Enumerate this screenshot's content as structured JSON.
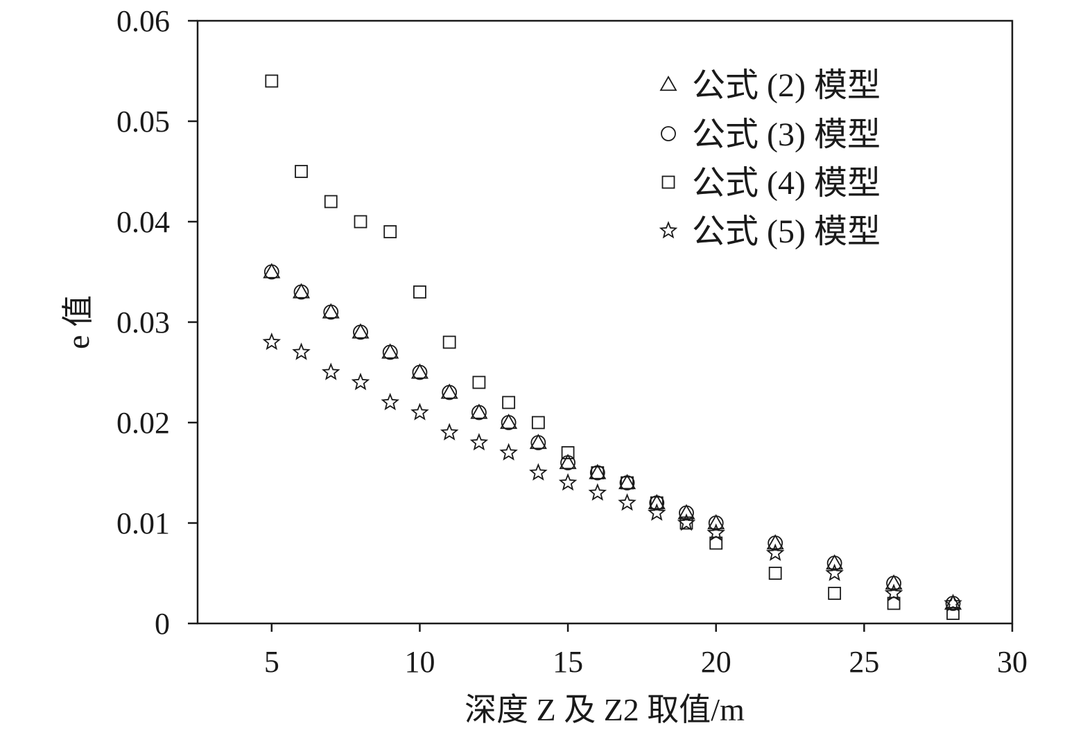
{
  "chart_data": {
    "type": "scatter",
    "title": "",
    "xlabel": "深度 Z 及 Z2 取值/m",
    "ylabel": "e 值",
    "xlim": [
      2.5,
      30
    ],
    "ylim": [
      0,
      0.06
    ],
    "x_ticks": [
      5,
      10,
      15,
      20,
      25,
      30
    ],
    "y_ticks": [
      0,
      0.01,
      0.02,
      0.03,
      0.04,
      0.05,
      0.06
    ],
    "x_tick_labels": [
      "5",
      "10",
      "15",
      "20",
      "25",
      "30"
    ],
    "y_tick_labels": [
      "0",
      "0.01",
      "0.02",
      "0.03",
      "0.04",
      "0.05",
      "0.06"
    ],
    "grid": false,
    "legend_position": "top-right",
    "series": [
      {
        "name": "公式 (2) 模型",
        "marker": "triangle",
        "x": [
          5,
          6,
          7,
          8,
          9,
          10,
          11,
          12,
          13,
          14,
          15,
          16,
          17,
          18,
          19,
          20,
          22,
          24,
          26,
          28
        ],
        "y": [
          0.035,
          0.033,
          0.031,
          0.029,
          0.027,
          0.025,
          0.023,
          0.021,
          0.02,
          0.018,
          0.016,
          0.015,
          0.014,
          0.012,
          0.011,
          0.01,
          0.008,
          0.006,
          0.004,
          0.002
        ]
      },
      {
        "name": "公式 (3) 模型",
        "marker": "circle",
        "x": [
          5,
          6,
          7,
          8,
          9,
          10,
          11,
          12,
          13,
          14,
          15,
          16,
          17,
          18,
          19,
          20,
          22,
          24,
          26,
          28
        ],
        "y": [
          0.035,
          0.033,
          0.031,
          0.029,
          0.027,
          0.025,
          0.023,
          0.021,
          0.02,
          0.018,
          0.016,
          0.015,
          0.014,
          0.012,
          0.011,
          0.01,
          0.008,
          0.006,
          0.004,
          0.002
        ]
      },
      {
        "name": "公式 (4) 模型",
        "marker": "square",
        "x": [
          5,
          6,
          7,
          8,
          9,
          10,
          11,
          12,
          13,
          14,
          15,
          16,
          17,
          18,
          19,
          20,
          22,
          24,
          26,
          28
        ],
        "y": [
          0.054,
          0.045,
          0.042,
          0.04,
          0.039,
          0.033,
          0.028,
          0.024,
          0.022,
          0.02,
          0.017,
          0.015,
          0.014,
          0.012,
          0.01,
          0.008,
          0.005,
          0.003,
          0.002,
          0.001
        ]
      },
      {
        "name": "公式 (5) 模型",
        "marker": "star",
        "x": [
          5,
          6,
          7,
          8,
          9,
          10,
          11,
          12,
          13,
          14,
          15,
          16,
          17,
          18,
          19,
          20,
          22,
          24,
          26,
          28
        ],
        "y": [
          0.028,
          0.027,
          0.025,
          0.024,
          0.022,
          0.021,
          0.019,
          0.018,
          0.017,
          0.015,
          0.014,
          0.013,
          0.012,
          0.011,
          0.01,
          0.009,
          0.007,
          0.005,
          0.003,
          0.002
        ]
      }
    ]
  }
}
